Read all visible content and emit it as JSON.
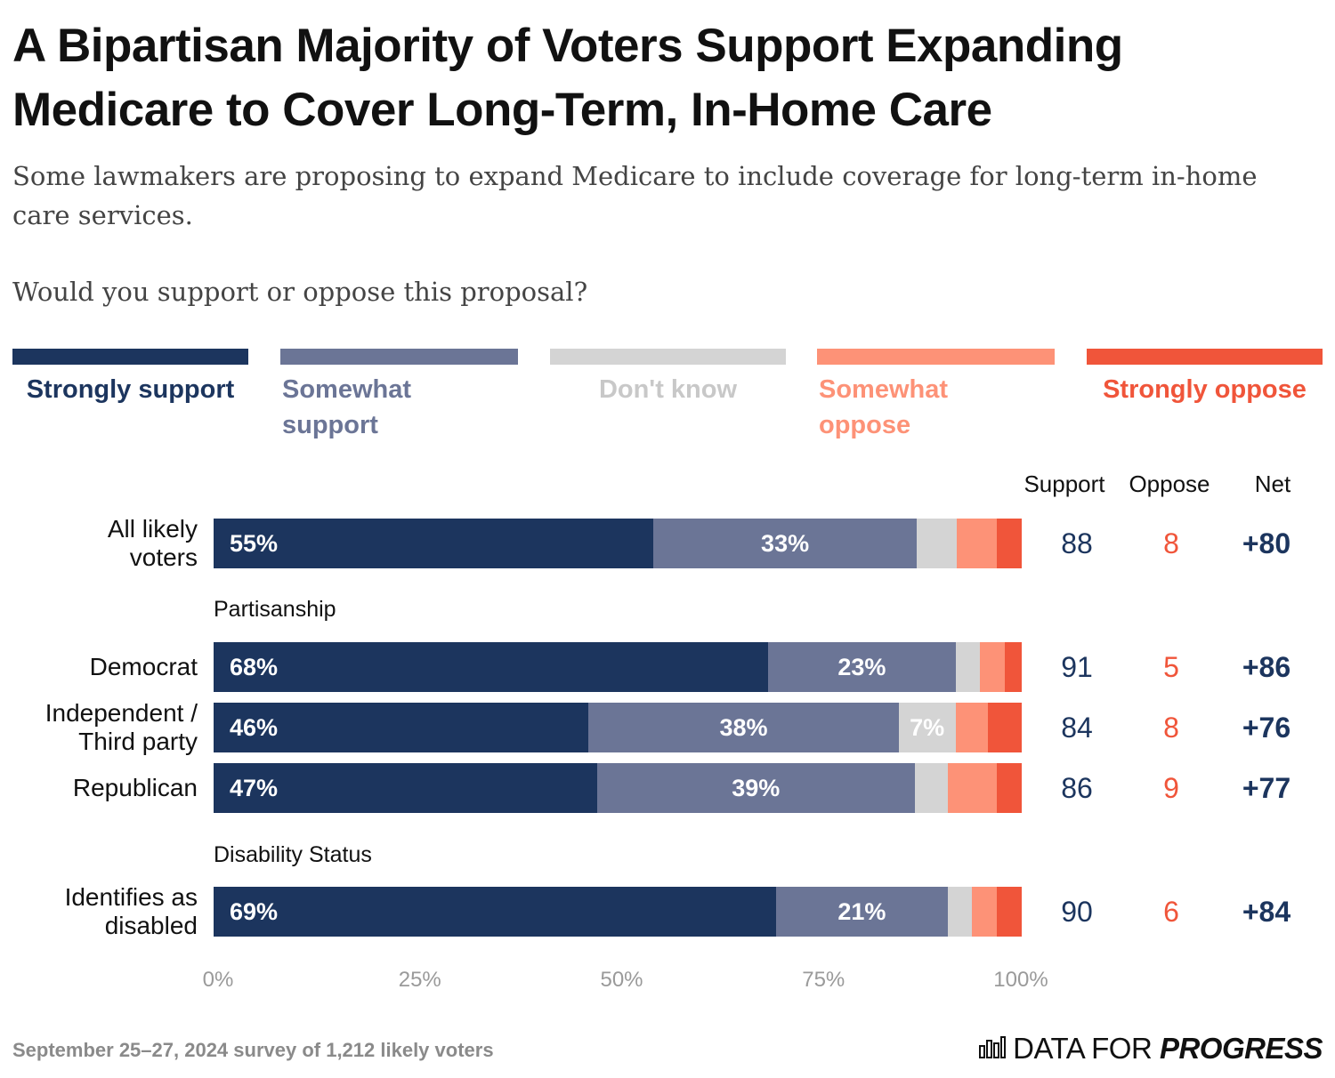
{
  "title": "A Bipartisan Majority of Voters Support Expanding Medicare to Cover Long-Term, In-Home Care",
  "subtitle": "Some lawmakers are proposing to expand Medicare to include coverage for long-term in-home care services.",
  "question": "Would you support or oppose this proposal?",
  "columns": {
    "support": "Support",
    "oppose": "Oppose",
    "net": "Net"
  },
  "footer": "September 25–27, 2024 survey of 1,212 likely voters",
  "brand": {
    "prefix": "DATA FOR",
    "emphasis": "PROGRESS",
    "icon": "bar-chart-logo-icon"
  },
  "colors": {
    "strongly_support": "#1c355e",
    "somewhat_support": "#6b7596",
    "dont_know": "#d4d4d4",
    "somewhat_oppose": "#fd9277",
    "strongly_oppose": "#f0553a",
    "support_text": "#1c355e",
    "oppose_text": "#f0553a"
  },
  "chart_data": {
    "type": "bar",
    "orientation": "horizontal-stacked",
    "xlim": [
      0,
      100
    ],
    "x_ticks": [
      "0%",
      "25%",
      "50%",
      "75%",
      "100%"
    ],
    "legend": [
      {
        "key": "strongly_support",
        "label": "Strongly support"
      },
      {
        "key": "somewhat_support",
        "label": "Somewhat support"
      },
      {
        "key": "dont_know",
        "label": "Don't know"
      },
      {
        "key": "somewhat_oppose",
        "label": "Somewhat oppose"
      },
      {
        "key": "strongly_oppose",
        "label": "Strongly oppose"
      }
    ],
    "groups": [
      {
        "label": "",
        "rows": [
          {
            "label": "All likely voters",
            "values": [
              55,
              33,
              5,
              5,
              3
            ],
            "labels": [
              "55%",
              "33%",
              "",
              "",
              ""
            ],
            "support": "88",
            "oppose": "8",
            "net": "+80"
          }
        ]
      },
      {
        "label": "Partisanship",
        "rows": [
          {
            "label": "Democrat",
            "values": [
              68,
              23,
              3,
              3,
              2
            ],
            "labels": [
              "68%",
              "23%",
              "",
              "",
              ""
            ],
            "support": "91",
            "oppose": "5",
            "net": "+86"
          },
          {
            "label": "Independent / Third party",
            "values": [
              46,
              38,
              7,
              4,
              4
            ],
            "labels": [
              "46%",
              "38%",
              "7%",
              "",
              ""
            ],
            "support": "84",
            "oppose": "8",
            "net": "+76"
          },
          {
            "label": "Republican",
            "values": [
              47,
              39,
              4,
              6,
              3
            ],
            "labels": [
              "47%",
              "39%",
              "",
              "",
              ""
            ],
            "support": "86",
            "oppose": "9",
            "net": "+77"
          }
        ]
      },
      {
        "label": "Disability Status",
        "rows": [
          {
            "label": "Identifies as disabled",
            "values": [
              69,
              21,
              3,
              3,
              3
            ],
            "labels": [
              "69%",
              "21%",
              "",
              "",
              ""
            ],
            "support": "90",
            "oppose": "6",
            "net": "+84"
          }
        ]
      }
    ]
  }
}
